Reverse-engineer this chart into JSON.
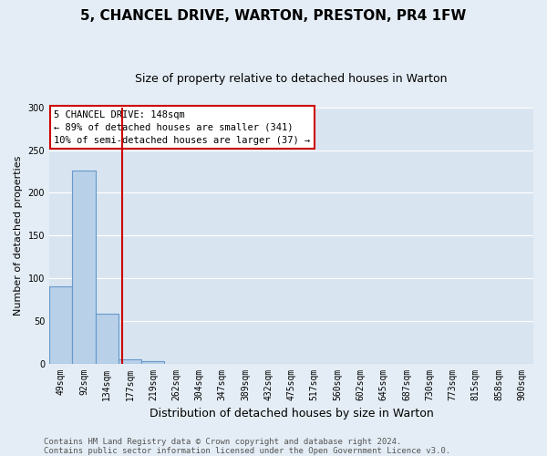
{
  "title": "5, CHANCEL DRIVE, WARTON, PRESTON, PR4 1FW",
  "subtitle": "Size of property relative to detached houses in Warton",
  "bar_labels": [
    "49sqm",
    "92sqm",
    "134sqm",
    "177sqm",
    "219sqm",
    "262sqm",
    "304sqm",
    "347sqm",
    "389sqm",
    "432sqm",
    "475sqm",
    "517sqm",
    "560sqm",
    "602sqm",
    "645sqm",
    "687sqm",
    "730sqm",
    "773sqm",
    "815sqm",
    "858sqm",
    "900sqm"
  ],
  "bar_values": [
    90,
    226,
    58,
    5,
    3,
    0,
    0,
    0,
    0,
    0,
    0,
    0,
    0,
    0,
    0,
    0,
    0,
    0,
    0,
    0,
    0
  ],
  "bar_color": "#b8d0e8",
  "bar_edge_color": "#6699cc",
  "vline_x_index": 2.67,
  "vline_color": "#cc0000",
  "ylim": [
    0,
    300
  ],
  "yticks": [
    0,
    50,
    100,
    150,
    200,
    250,
    300
  ],
  "ylabel": "Number of detached properties",
  "xlabel": "Distribution of detached houses by size in Warton",
  "annotation_title": "5 CHANCEL DRIVE: 148sqm",
  "annotation_line1": "← 89% of detached houses are smaller (341)",
  "annotation_line2": "10% of semi-detached houses are larger (37) →",
  "annotation_box_facecolor": "#ffffff",
  "annotation_box_edgecolor": "#cc0000",
  "footer_line1": "Contains HM Land Registry data © Crown copyright and database right 2024.",
  "footer_line2": "Contains public sector information licensed under the Open Government Licence v3.0.",
  "bg_color": "#e4edf5",
  "plot_bg_color": "#d8e4f0",
  "grid_color": "#ffffff",
  "title_fontsize": 11,
  "subtitle_fontsize": 9,
  "ylabel_fontsize": 8,
  "xlabel_fontsize": 9,
  "tick_fontsize": 7,
  "footer_fontsize": 6.5
}
